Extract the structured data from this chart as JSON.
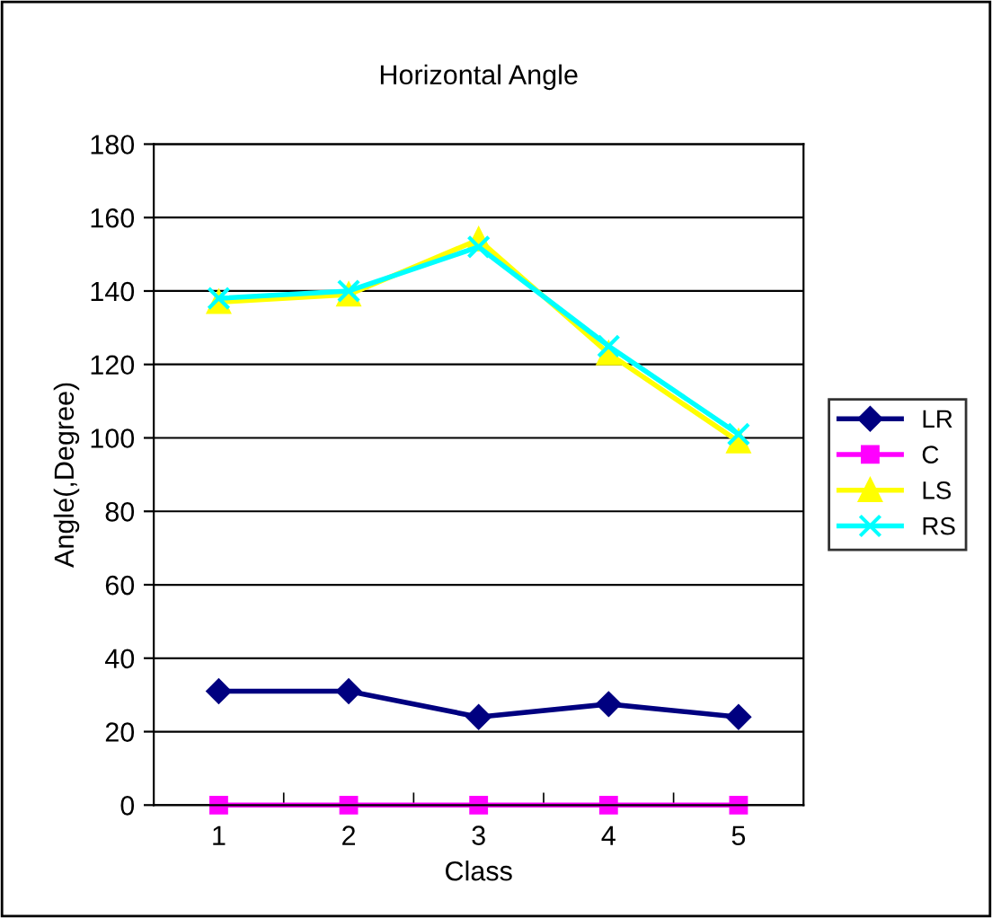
{
  "chart_data": {
    "type": "line",
    "title": "Horizontal Angle",
    "xlabel": "Class",
    "ylabel": "Angle(,Degree)",
    "categories": [
      "1",
      "2",
      "3",
      "4",
      "5"
    ],
    "series": [
      {
        "name": "LR",
        "color": "#000080",
        "marker": "diamond",
        "values": [
          31,
          31,
          24,
          27.5,
          24
        ]
      },
      {
        "name": "C",
        "color": "#ff00ff",
        "marker": "square",
        "values": [
          0,
          0,
          0,
          0,
          0
        ]
      },
      {
        "name": "LS",
        "color": "#ffff00",
        "marker": "triangle",
        "values": [
          137,
          139,
          154,
          123,
          99
        ]
      },
      {
        "name": "RS",
        "color": "#00ffff",
        "marker": "cross",
        "values": [
          138,
          140,
          152,
          125,
          101
        ]
      }
    ],
    "ylim": [
      0,
      180
    ],
    "yticks": [
      0,
      20,
      40,
      60,
      80,
      100,
      120,
      140,
      160,
      180
    ],
    "grid": "y",
    "legend": "right"
  }
}
